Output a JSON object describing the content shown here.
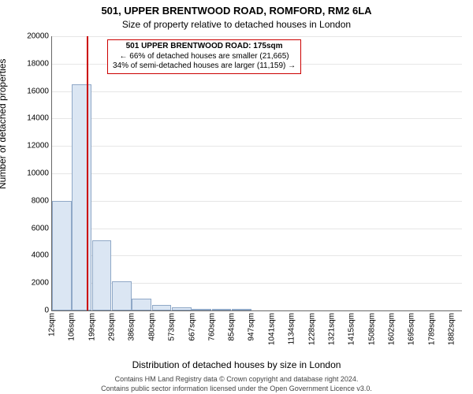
{
  "title": "501, UPPER BRENTWOOD ROAD, ROMFORD, RM2 6LA",
  "subtitle": "Size of property relative to detached houses in London",
  "ylabel": "Number of detached properties",
  "xlabel": "Distribution of detached houses by size in London",
  "footer_line1": "Contains HM Land Registry data © Crown copyright and database right 2024.",
  "footer_line2": "Contains public sector information licensed under the Open Government Licence v3.0.",
  "chart": {
    "type": "histogram",
    "background_color": "#ffffff",
    "grid_color": "#e6e6e6",
    "axis_color": "#666666",
    "bar_fill": "#dbe6f3",
    "bar_border": "#8fa8c7",
    "marker_color": "#cc0000",
    "annotation_border": "#cc0000",
    "ylim": [
      0,
      20000
    ],
    "ytick_step": 2000,
    "xlim_sqm": [
      12,
      1930
    ],
    "bin_width_sqm": 93.5,
    "bar_rel_width": 0.97,
    "xtick_values": [
      12,
      106,
      199,
      293,
      386,
      480,
      573,
      667,
      760,
      854,
      947,
      1041,
      1134,
      1228,
      1321,
      1415,
      1508,
      1602,
      1695,
      1789,
      1882
    ],
    "marker_value_sqm": 175,
    "values": [
      8000,
      16500,
      5100,
      2100,
      850,
      400,
      250,
      100,
      80,
      60,
      0,
      0,
      0,
      0,
      0,
      0,
      0,
      0,
      0,
      0
    ],
    "title_fontsize": 13,
    "subtitle_fontsize": 12,
    "label_fontsize": 12,
    "tick_fontsize": 10,
    "footer_fontsize": 9,
    "annotation_fontsize": 10
  },
  "annotation": {
    "line1": "501 UPPER BRENTWOOD ROAD: 175sqm",
    "line2": "← 66% of detached houses are smaller (21,665)",
    "line3": "34% of semi-detached houses are larger (11,159) →"
  }
}
